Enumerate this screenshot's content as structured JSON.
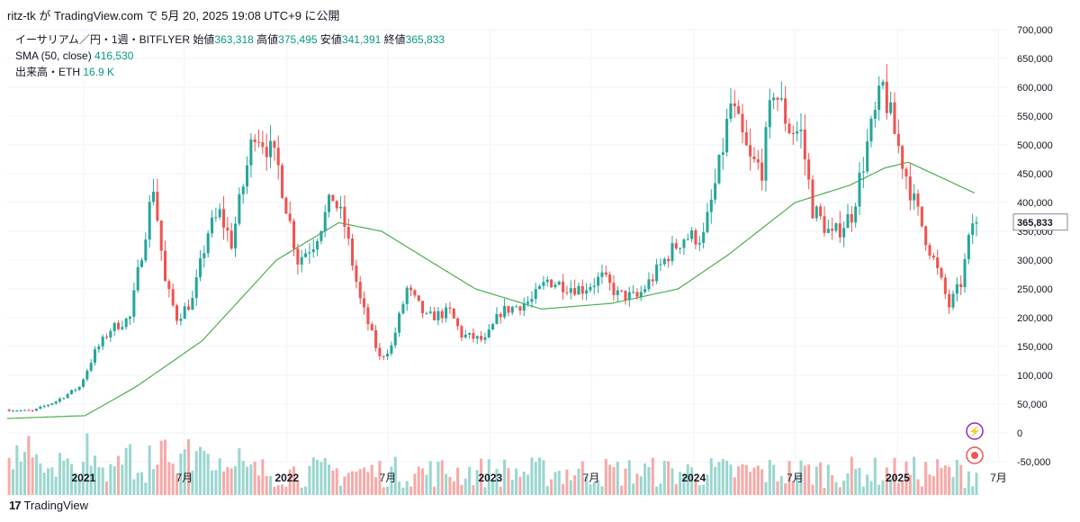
{
  "header": {
    "text": "ritz-tk が TradingView.com で 5月 20, 2025 19:08 UTC+9 に公開"
  },
  "legend": {
    "symbol": "イーサリアム／円・1週・BITFLYER",
    "open_label": "始値",
    "open": "363,318",
    "high_label": "高値",
    "high": "375,495",
    "low_label": "安値",
    "low": "341,391",
    "close_label": "終値",
    "close": "365,833",
    "sma_label": "SMA (50, close)",
    "sma_value": "416,530",
    "volume_label": "出来高・ETH",
    "volume_value": "16.9 K"
  },
  "price_tag": "365,833",
  "footer": {
    "brand": "TradingView",
    "logo_mark": "17"
  },
  "colors": {
    "up": "#26a69a",
    "down": "#ef5350",
    "sma": "#4caf50",
    "vol_up": "#9bd6cf",
    "vol_down": "#f7a9a7",
    "tag_bg": "#ffffff"
  },
  "chart_data": {
    "type": "candlestick",
    "y_axis": {
      "ticks": [
        "700,000",
        "650,000",
        "600,000",
        "550,000",
        "500,000",
        "450,000",
        "400,000",
        "350,000",
        "300,000",
        "250,000",
        "200,000",
        "150,000",
        "100,000",
        "50,000",
        "0",
        "-50,000"
      ],
      "range": [
        -50000,
        700000
      ]
    },
    "x_axis": {
      "ticks": [
        "2021",
        "7月",
        "2022",
        "7月",
        "2023",
        "7月",
        "2024",
        "7月",
        "2025",
        "7月"
      ],
      "dates": [
        "2021-01-01",
        "2021-07-01",
        "2022-01-01",
        "2022-07-01",
        "2023-01-01",
        "2023-07-01",
        "2024-01-01",
        "2024-07-01",
        "2025-01-01",
        "2025-07-01"
      ],
      "range": [
        "2020-08-17",
        "2025-07-18"
      ]
    },
    "price_keypoints": [
      [
        "2020-08-17",
        40000
      ],
      [
        "2020-10-05",
        38000
      ],
      [
        "2020-11-16",
        55000
      ],
      [
        "2020-12-28",
        80000
      ],
      [
        "2021-01-25",
        140000
      ],
      [
        "2021-02-22",
        180000
      ],
      [
        "2021-03-29",
        200000
      ],
      [
        "2021-05-10",
        430000
      ],
      [
        "2021-05-31",
        260000
      ],
      [
        "2021-06-21",
        200000
      ],
      [
        "2021-07-19",
        230000
      ],
      [
        "2021-08-16",
        350000
      ],
      [
        "2021-09-06",
        380000
      ],
      [
        "2021-09-27",
        330000
      ],
      [
        "2021-11-08",
        530000
      ],
      [
        "2021-11-29",
        500000
      ],
      [
        "2021-12-20",
        460000
      ],
      [
        "2022-01-24",
        300000
      ],
      [
        "2022-02-21",
        330000
      ],
      [
        "2022-03-28",
        410000
      ],
      [
        "2022-04-18",
        360000
      ],
      [
        "2022-05-16",
        230000
      ],
      [
        "2022-06-20",
        130000
      ],
      [
        "2022-07-11",
        150000
      ],
      [
        "2022-08-08",
        250000
      ],
      [
        "2022-09-12",
        200000
      ],
      [
        "2022-10-24",
        210000
      ],
      [
        "2022-11-14",
        170000
      ],
      [
        "2022-12-26",
        160000
      ],
      [
        "2023-01-23",
        210000
      ],
      [
        "2023-02-20",
        220000
      ],
      [
        "2023-03-20",
        230000
      ],
      [
        "2023-04-17",
        265000
      ],
      [
        "2023-05-22",
        255000
      ],
      [
        "2023-06-19",
        250000
      ],
      [
        "2023-07-24",
        270000
      ],
      [
        "2023-08-21",
        240000
      ],
      [
        "2023-09-25",
        235000
      ],
      [
        "2023-10-23",
        270000
      ],
      [
        "2023-11-20",
        310000
      ],
      [
        "2023-12-18",
        340000
      ],
      [
        "2024-01-22",
        340000
      ],
      [
        "2024-02-19",
        460000
      ],
      [
        "2024-03-11",
        570000
      ],
      [
        "2024-04-15",
        470000
      ],
      [
        "2024-05-06",
        460000
      ],
      [
        "2024-05-27",
        600000
      ],
      [
        "2024-06-24",
        530000
      ],
      [
        "2024-07-15",
        520000
      ],
      [
        "2024-08-05",
        390000
      ],
      [
        "2024-09-09",
        340000
      ],
      [
        "2024-10-14",
        380000
      ],
      [
        "2024-11-11",
        500000
      ],
      [
        "2024-12-09",
        600000
      ],
      [
        "2024-12-30",
        520000
      ],
      [
        "2025-02-03",
        400000
      ],
      [
        "2025-03-10",
        300000
      ],
      [
        "2025-04-07",
        220000
      ],
      [
        "2025-04-28",
        260000
      ],
      [
        "2025-05-19",
        365833
      ]
    ],
    "sma50_keypoints": [
      [
        "2020-08-17",
        25000
      ],
      [
        "2021-01-04",
        30000
      ],
      [
        "2021-04-05",
        80000
      ],
      [
        "2021-08-02",
        160000
      ],
      [
        "2021-12-13",
        300000
      ],
      [
        "2022-04-04",
        365000
      ],
      [
        "2022-06-20",
        350000
      ],
      [
        "2022-12-05",
        250000
      ],
      [
        "2023-04-03",
        215000
      ],
      [
        "2023-08-07",
        225000
      ],
      [
        "2023-12-04",
        250000
      ],
      [
        "2024-03-04",
        310000
      ],
      [
        "2024-07-01",
        400000
      ],
      [
        "2024-10-07",
        430000
      ],
      [
        "2024-12-09",
        460000
      ],
      [
        "2025-01-20",
        470000
      ],
      [
        "2025-05-19",
        416530
      ]
    ],
    "last_candle": {
      "open": 363318,
      "high": 375495,
      "low": 341391,
      "close": 365833
    },
    "sma_last": 416530,
    "volume_last_k": 16.9
  }
}
